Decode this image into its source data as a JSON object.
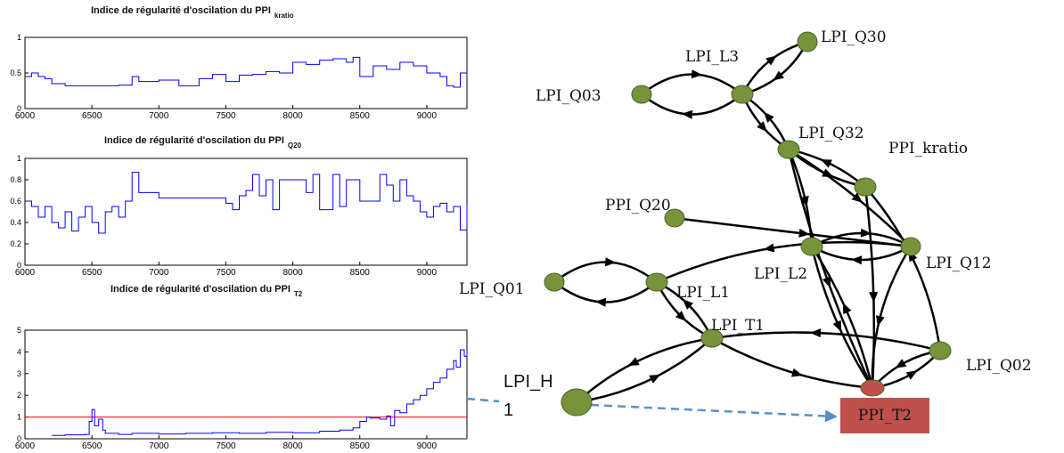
{
  "chart_data": [
    {
      "type": "line",
      "title": "Indice de régularité d'oscilation du PPI",
      "title_sub": "kratio",
      "xlim": [
        6000,
        9300
      ],
      "ylim": [
        0,
        1
      ],
      "x_ticks": [
        6000,
        6500,
        7000,
        7500,
        8000,
        8500,
        9000
      ],
      "y_ticks": [
        0,
        0.5,
        1
      ],
      "y_tick_labels": [
        "0",
        "0.5",
        "1"
      ],
      "grid": false,
      "series": [
        {
          "color": "#0000ff",
          "x": [
            6000,
            6050,
            6100,
            6150,
            6200,
            6300,
            6500,
            6700,
            6800,
            6850,
            7000,
            7150,
            7300,
            7400,
            7500,
            7600,
            7700,
            7800,
            7900,
            8000,
            8100,
            8200,
            8300,
            8400,
            8450,
            8500,
            8600,
            8700,
            8800,
            8900,
            9000,
            9100,
            9150,
            9200,
            9250,
            9300
          ],
          "y": [
            0.45,
            0.5,
            0.45,
            0.42,
            0.35,
            0.32,
            0.32,
            0.33,
            0.45,
            0.38,
            0.4,
            0.32,
            0.42,
            0.48,
            0.38,
            0.47,
            0.48,
            0.52,
            0.5,
            0.65,
            0.62,
            0.68,
            0.7,
            0.65,
            0.72,
            0.45,
            0.6,
            0.55,
            0.65,
            0.6,
            0.5,
            0.45,
            0.32,
            0.3,
            0.5,
            0.48
          ]
        }
      ]
    },
    {
      "type": "line",
      "title": "Indice de régularité d'oscilation du PPI",
      "title_sub": "Q20",
      "xlim": [
        6000,
        9300
      ],
      "ylim": [
        0,
        1
      ],
      "x_ticks": [
        6000,
        6500,
        7000,
        7500,
        8000,
        8500,
        9000
      ],
      "y_ticks": [
        0,
        0.2,
        0.4,
        0.6,
        0.8,
        1
      ],
      "y_tick_labels": [
        "0",
        "0.2",
        "0.4",
        "0.6",
        "0.8",
        "1"
      ],
      "grid": false,
      "series": [
        {
          "color": "#0000ff",
          "x": [
            6000,
            6050,
            6100,
            6150,
            6200,
            6250,
            6300,
            6350,
            6400,
            6450,
            6500,
            6550,
            6600,
            6650,
            6700,
            6750,
            6800,
            6850,
            7000,
            7150,
            7300,
            7500,
            7550,
            7600,
            7650,
            7700,
            7750,
            7800,
            7850,
            7900,
            8000,
            8100,
            8150,
            8200,
            8300,
            8350,
            8400,
            8500,
            8600,
            8650,
            8700,
            8750,
            8800,
            8850,
            8900,
            8950,
            9000,
            9050,
            9100,
            9150,
            9200,
            9250,
            9300
          ],
          "y": [
            0.6,
            0.55,
            0.45,
            0.55,
            0.4,
            0.35,
            0.5,
            0.32,
            0.45,
            0.55,
            0.4,
            0.3,
            0.5,
            0.55,
            0.45,
            0.6,
            0.87,
            0.68,
            0.63,
            0.63,
            0.63,
            0.58,
            0.52,
            0.65,
            0.7,
            0.85,
            0.65,
            0.8,
            0.52,
            0.8,
            0.8,
            0.68,
            0.85,
            0.52,
            0.85,
            0.55,
            0.8,
            0.6,
            0.6,
            0.85,
            0.75,
            0.6,
            0.8,
            0.65,
            0.6,
            0.5,
            0.45,
            0.55,
            0.58,
            0.5,
            0.55,
            0.33,
            0.58
          ]
        }
      ]
    },
    {
      "type": "line",
      "title": "Indice de régularité d'oscilation du PPI",
      "title_sub": "T2",
      "xlim": [
        6000,
        9300
      ],
      "ylim": [
        0,
        5
      ],
      "x_ticks": [
        6000,
        6500,
        7000,
        7500,
        8000,
        8500,
        9000
      ],
      "y_ticks": [
        0,
        1,
        2,
        3,
        4,
        5
      ],
      "y_tick_labels": [
        "0",
        "1",
        "2",
        "3",
        "4",
        "5"
      ],
      "grid": false,
      "threshold": {
        "value": 1,
        "color": "#ff0000"
      },
      "series": [
        {
          "color": "#0000ff",
          "x": [
            6200,
            6300,
            6450,
            6480,
            6500,
            6520,
            6550,
            6580,
            6600,
            6700,
            6800,
            7000,
            7200,
            7400,
            7600,
            7800,
            8000,
            8200,
            8350,
            8450,
            8500,
            8550,
            8580,
            8650,
            8700,
            8730,
            8760,
            8800,
            8850,
            8900,
            8950,
            9000,
            9050,
            9100,
            9150,
            9200,
            9220,
            9250,
            9280,
            9300
          ],
          "y": [
            0.15,
            0.18,
            0.2,
            0.8,
            1.35,
            0.6,
            0.9,
            0.4,
            0.25,
            0.2,
            0.25,
            0.22,
            0.25,
            0.28,
            0.25,
            0.3,
            0.28,
            0.35,
            0.4,
            0.5,
            0.8,
            1.0,
            0.95,
            0.9,
            1.05,
            0.6,
            1.3,
            1.2,
            1.6,
            1.8,
            2.0,
            2.3,
            2.6,
            2.8,
            3.2,
            3.6,
            3.3,
            4.1,
            3.8,
            4.0
          ]
        }
      ]
    }
  ],
  "graph": {
    "nodes": [
      {
        "id": "LPI_Q30",
        "label": "LPI_Q30",
        "color": "#77933c"
      },
      {
        "id": "LPI_L3",
        "label": "LPI_L3",
        "color": "#77933c"
      },
      {
        "id": "LPI_Q03",
        "label": "LPI_Q03",
        "color": "#77933c"
      },
      {
        "id": "LPI_Q32",
        "label": "LPI_Q32",
        "color": "#77933c"
      },
      {
        "id": "PPI_kratio",
        "label": "PPI_kratio",
        "color": "#77933c"
      },
      {
        "id": "PPI_Q20",
        "label": "PPI_Q20",
        "color": "#77933c"
      },
      {
        "id": "LPI_L2",
        "label": "LPI_L2",
        "color": "#77933c"
      },
      {
        "id": "LPI_Q12",
        "label": "LPI_Q12",
        "color": "#77933c"
      },
      {
        "id": "LPI_Q01",
        "label": "LPI_Q01",
        "color": "#77933c"
      },
      {
        "id": "LPI_L1",
        "label": "LPI_L1",
        "color": "#77933c"
      },
      {
        "id": "LPI_T1",
        "label": "LPI_T1",
        "color": "#77933c"
      },
      {
        "id": "LPI_Q02",
        "label": "LPI_Q02",
        "color": "#77933c"
      },
      {
        "id": "LPI_H1",
        "label": "LPI_H",
        "label_line2": "1",
        "color": "#77933c"
      },
      {
        "id": "PPI_T2",
        "label": "PPI_T2",
        "color": "#c0504d"
      }
    ],
    "edges": [
      [
        "LPI_Q30",
        "LPI_L3"
      ],
      [
        "LPI_L3",
        "LPI_Q30"
      ],
      [
        "LPI_L3",
        "LPI_Q03"
      ],
      [
        "LPI_Q03",
        "LPI_L3"
      ],
      [
        "LPI_L3",
        "LPI_Q32"
      ],
      [
        "LPI_Q32",
        "LPI_L3"
      ],
      [
        "LPI_Q32",
        "PPI_kratio"
      ],
      [
        "PPI_kratio",
        "LPI_Q32"
      ],
      [
        "LPI_Q32",
        "LPI_L2"
      ],
      [
        "LPI_Q32",
        "PPI_T2"
      ],
      [
        "LPI_Q32",
        "LPI_Q12"
      ],
      [
        "PPI_kratio",
        "PPI_T2"
      ],
      [
        "PPI_Q20",
        "LPI_Q12"
      ],
      [
        "LPI_L2",
        "LPI_Q12"
      ],
      [
        "LPI_Q12",
        "LPI_L2"
      ],
      [
        "LPI_Q12",
        "LPI_L1"
      ],
      [
        "LPI_Q12",
        "PPI_T2"
      ],
      [
        "LPI_Q01",
        "LPI_L1"
      ],
      [
        "LPI_L1",
        "LPI_Q01"
      ],
      [
        "LPI_L1",
        "LPI_T1"
      ],
      [
        "LPI_T1",
        "LPI_L1"
      ],
      [
        "LPI_T1",
        "LPI_H1"
      ],
      [
        "LPI_H1",
        "LPI_T1"
      ],
      [
        "LPI_T1",
        "PPI_T2"
      ],
      [
        "LPI_Q02",
        "LPI_T1"
      ],
      [
        "LPI_Q02",
        "PPI_T2"
      ],
      [
        "PPI_T2",
        "LPI_Q02"
      ],
      [
        "LPI_Q02",
        "PPI_kratio"
      ],
      [
        "LPI_L2",
        "PPI_T2"
      ],
      [
        "PPI_T2",
        "LPI_L2"
      ]
    ],
    "dashed_link": {
      "from": "LPI_H1",
      "to": "PPI_T2",
      "color": "#5b8fc7"
    },
    "connector_color": "#5b8fc7"
  },
  "ppi_t2_box": {
    "label": "PPI_T2",
    "color": "#c0504d"
  }
}
